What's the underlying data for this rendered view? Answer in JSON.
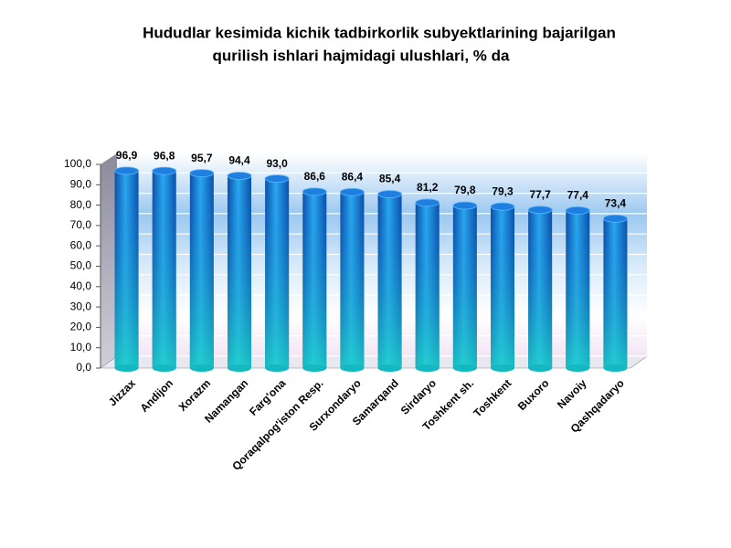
{
  "chart_data": {
    "type": "bar",
    "title": [
      "Hududlar kesimida kichik tadbirkorlik subyektlarining bajarilgan",
      "qurilish ishlari hajmidagi ulushlari, % da"
    ],
    "categories": [
      "Jizzax",
      "Andijon",
      "Xorazm",
      "Namangan",
      "Farg'ona",
      "Qoraqalpog'iston Resp.",
      "Surxondaryo",
      "Samarqand",
      "Sirdaryo",
      "Toshkent sh.",
      "Toshkent",
      "Buxoro",
      "Navoiy",
      "Qashqadaryo"
    ],
    "values": [
      96.9,
      96.8,
      95.7,
      94.4,
      93.0,
      86.6,
      86.4,
      85.4,
      81.2,
      79.8,
      79.3,
      77.7,
      77.4,
      73.4
    ],
    "value_labels": [
      "96,9",
      "96,8",
      "95,7",
      "94,4",
      "93,0",
      "86,6",
      "86,4",
      "85,4",
      "81,2",
      "79,8",
      "79,3",
      "77,7",
      "77,4",
      "73,4"
    ],
    "color": "#1a7fd6",
    "ylim": [
      0,
      100
    ],
    "yticks": [
      {
        "value": 0,
        "label": "0,0"
      },
      {
        "value": 10,
        "label": "10,0"
      },
      {
        "value": 20,
        "label": "20,0"
      },
      {
        "value": 30,
        "label": "30,0"
      },
      {
        "value": 40,
        "label": "40,0"
      },
      {
        "value": 50,
        "label": "50,0"
      },
      {
        "value": 60,
        "label": "60,0"
      },
      {
        "value": 70,
        "label": "70,0"
      },
      {
        "value": 80,
        "label": "80,0"
      },
      {
        "value": 90,
        "label": "90,0"
      },
      {
        "value": 100,
        "label": "100,0"
      }
    ],
    "grid": true
  }
}
